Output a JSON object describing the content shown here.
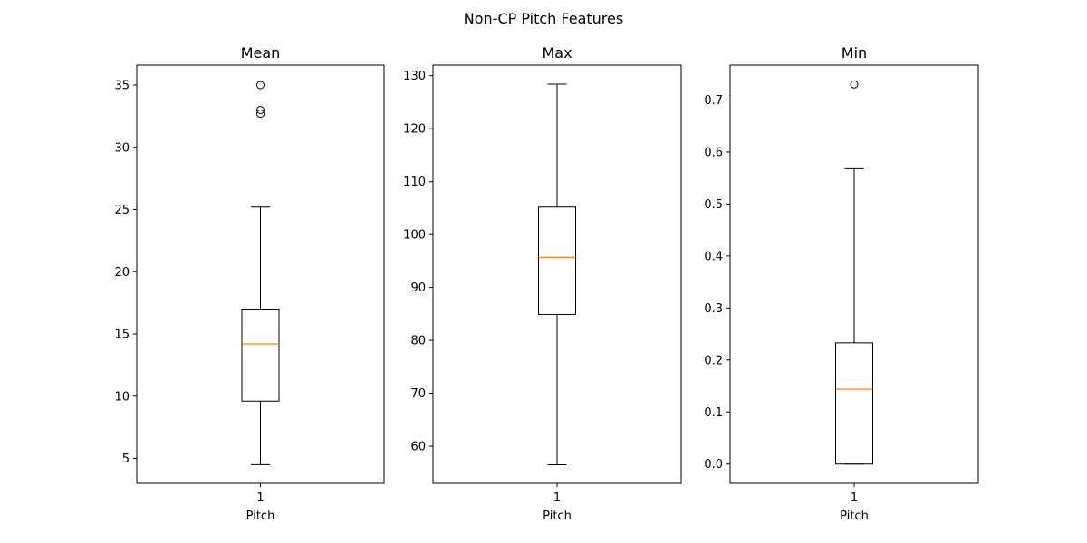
{
  "figure": {
    "suptitle": "Non-CP Pitch Features"
  },
  "colors": {
    "box": "#000000",
    "median": "#ff7f0e",
    "background": "#ffffff"
  },
  "chart_data": [
    {
      "type": "box",
      "title": "Mean",
      "xlabel": "Pitch",
      "categories": [
        "1"
      ],
      "ylim": [
        3.0,
        36.6
      ],
      "yticks": [
        5,
        10,
        15,
        20,
        25,
        30,
        35
      ],
      "box": {
        "whisker_low": 4.5,
        "q1": 9.6,
        "median": 14.2,
        "q3": 17.0,
        "whisker_high": 25.2
      },
      "fliers": [
        32.7,
        33.0,
        35.0
      ]
    },
    {
      "type": "box",
      "title": "Max",
      "xlabel": "Pitch",
      "categories": [
        "1"
      ],
      "ylim": [
        53.0,
        132.0
      ],
      "yticks": [
        60,
        70,
        80,
        90,
        100,
        110,
        120,
        130
      ],
      "box": {
        "whisker_low": 56.5,
        "q1": 84.9,
        "median": 95.7,
        "q3": 105.2,
        "whisker_high": 128.4
      },
      "fliers": []
    },
    {
      "type": "box",
      "title": "Min",
      "xlabel": "Pitch",
      "categories": [
        "1"
      ],
      "ylim": [
        -0.037,
        0.767
      ],
      "yticks": [
        0.0,
        0.1,
        0.2,
        0.3,
        0.4,
        0.5,
        0.6,
        0.7
      ],
      "box": {
        "whisker_low": 0.0,
        "q1": 0.0,
        "median": 0.144,
        "q3": 0.233,
        "whisker_high": 0.568
      },
      "fliers": [
        0.73
      ]
    }
  ]
}
